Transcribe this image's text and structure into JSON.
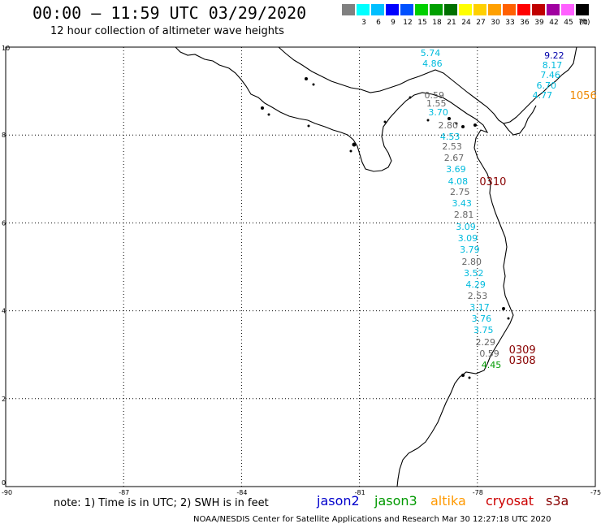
{
  "title": "00:00 – 11:59 UTC 03/29/2020",
  "subtitle": "12 hour collection of altimeter wave heights",
  "scale": {
    "unit": "(ft)",
    "swatches": [
      {
        "color": "#808080",
        "label": ""
      },
      {
        "color": "#00ffff",
        "label": "3"
      },
      {
        "color": "#00bfff",
        "label": "6"
      },
      {
        "color": "#0000ff",
        "label": "9"
      },
      {
        "color": "#0050ff",
        "label": "12"
      },
      {
        "color": "#00d000",
        "label": "15"
      },
      {
        "color": "#00a000",
        "label": "18"
      },
      {
        "color": "#007000",
        "label": "21"
      },
      {
        "color": "#ffff00",
        "label": "24"
      },
      {
        "color": "#ffd000",
        "label": "27"
      },
      {
        "color": "#ffa000",
        "label": "30"
      },
      {
        "color": "#ff6000",
        "label": "33"
      },
      {
        "color": "#ff0000",
        "label": "36"
      },
      {
        "color": "#c00000",
        "label": "39"
      },
      {
        "color": "#a000a0",
        "label": "42"
      },
      {
        "color": "#ff60ff",
        "label": "45"
      },
      {
        "color": "#000000",
        "label": "70"
      }
    ]
  },
  "axes": {
    "y_ticks": [
      {
        "label": "10",
        "y": 10
      },
      {
        "label": "8",
        "y": 8
      },
      {
        "label": "6",
        "y": 6
      },
      {
        "label": "4",
        "y": 4
      },
      {
        "label": "2",
        "y": 2
      },
      {
        "label": "0",
        "y": 0
      }
    ],
    "x_ticks": [
      {
        "label": "-90",
        "x": -90
      },
      {
        "label": "-87",
        "x": -87
      },
      {
        "label": "-84",
        "x": -84
      },
      {
        "label": "-81",
        "x": -81
      },
      {
        "label": "-78",
        "x": -78
      },
      {
        "label": "-75",
        "x": -75
      }
    ]
  },
  "note": "note:  1) Time is in UTC;  2) SWH is in feet",
  "legend": [
    {
      "label": "jason2",
      "color": "#0000cc"
    },
    {
      "label": "jason3",
      "color": "#009900"
    },
    {
      "label": "altika",
      "color": "#ff9900"
    },
    {
      "label": "cryosat",
      "color": "#cc0000"
    },
    {
      "label": "s3a",
      "color": "#880000"
    }
  ],
  "footer": "NOAA/NESDIS Center for Satellite Applications and Research      Mar 30 12:27:18 UTC 2020",
  "wave_labels": [
    {
      "text": "5.74",
      "color": "#00bbdd",
      "lon": -79.2,
      "lat": 9.85
    },
    {
      "text": "4.86",
      "color": "#00bbdd",
      "lon": -79.15,
      "lat": 9.62
    },
    {
      "text": "9.22",
      "color": "#0000aa",
      "lon": -76.05,
      "lat": 9.8
    },
    {
      "text": "8.17",
      "color": "#00bbdd",
      "lon": -76.1,
      "lat": 9.58
    },
    {
      "text": "7.46",
      "color": "#00bbdd",
      "lon": -76.15,
      "lat": 9.35
    },
    {
      "text": "6.70",
      "color": "#00bbdd",
      "lon": -76.25,
      "lat": 9.12
    },
    {
      "text": "4.77",
      "color": "#00bbdd",
      "lon": -76.35,
      "lat": 8.9
    },
    {
      "text": "1056",
      "color": "#ee8800",
      "lon": -75.4,
      "lat": 8.9,
      "big": true
    },
    {
      "text": "0.59",
      "color": "#666666",
      "lon": -79.1,
      "lat": 8.9
    },
    {
      "text": "1.55",
      "color": "#666666",
      "lon": -79.05,
      "lat": 8.7
    },
    {
      "text": "3.70",
      "color": "#00bbdd",
      "lon": -79.0,
      "lat": 8.5
    },
    {
      "text": "2.80",
      "color": "#666666",
      "lon": -78.75,
      "lat": 8.2
    },
    {
      "text": "4.53",
      "color": "#00bbdd",
      "lon": -78.7,
      "lat": 7.95
    },
    {
      "text": "2.53",
      "color": "#666666",
      "lon": -78.65,
      "lat": 7.72
    },
    {
      "text": "2.67",
      "color": "#666666",
      "lon": -78.6,
      "lat": 7.46
    },
    {
      "text": "3.69",
      "color": "#00bbdd",
      "lon": -78.55,
      "lat": 7.2
    },
    {
      "text": "4.08",
      "color": "#00bbdd",
      "lon": -78.5,
      "lat": 6.94
    },
    {
      "text": "0310",
      "color": "#880000",
      "lon": -77.7,
      "lat": 6.94,
      "big": true
    },
    {
      "text": "2.75",
      "color": "#666666",
      "lon": -78.45,
      "lat": 6.7
    },
    {
      "text": "3.43",
      "color": "#00bbdd",
      "lon": -78.4,
      "lat": 6.43
    },
    {
      "text": "2.81",
      "color": "#666666",
      "lon": -78.35,
      "lat": 6.17
    },
    {
      "text": "3.09",
      "color": "#00bbdd",
      "lon": -78.3,
      "lat": 5.9
    },
    {
      "text": "3.09",
      "color": "#00bbdd",
      "lon": -78.25,
      "lat": 5.64
    },
    {
      "text": "3.79",
      "color": "#00bbdd",
      "lon": -78.2,
      "lat": 5.38
    },
    {
      "text": "2.80",
      "color": "#666666",
      "lon": -78.15,
      "lat": 5.11
    },
    {
      "text": "3.52",
      "color": "#00bbdd",
      "lon": -78.1,
      "lat": 4.85
    },
    {
      "text": "4.29",
      "color": "#00bbdd",
      "lon": -78.05,
      "lat": 4.58
    },
    {
      "text": "2.53",
      "color": "#666666",
      "lon": -78.0,
      "lat": 4.32
    },
    {
      "text": "3.17",
      "color": "#00bbdd",
      "lon": -77.95,
      "lat": 4.06
    },
    {
      "text": "3.76",
      "color": "#00bbdd",
      "lon": -77.9,
      "lat": 3.8
    },
    {
      "text": "3.75",
      "color": "#00bbdd",
      "lon": -77.85,
      "lat": 3.54
    },
    {
      "text": "2.29",
      "color": "#666666",
      "lon": -77.8,
      "lat": 3.28
    },
    {
      "text": "0309",
      "color": "#880000",
      "lon": -76.95,
      "lat": 3.11,
      "big": true
    },
    {
      "text": "0.59",
      "color": "#666666",
      "lon": -77.7,
      "lat": 3.02
    },
    {
      "text": "0308",
      "color": "#880000",
      "lon": -76.95,
      "lat": 2.86,
      "big": true
    },
    {
      "text": "4.45",
      "color": "#009900",
      "lon": -77.65,
      "lat": 2.76
    }
  ]
}
